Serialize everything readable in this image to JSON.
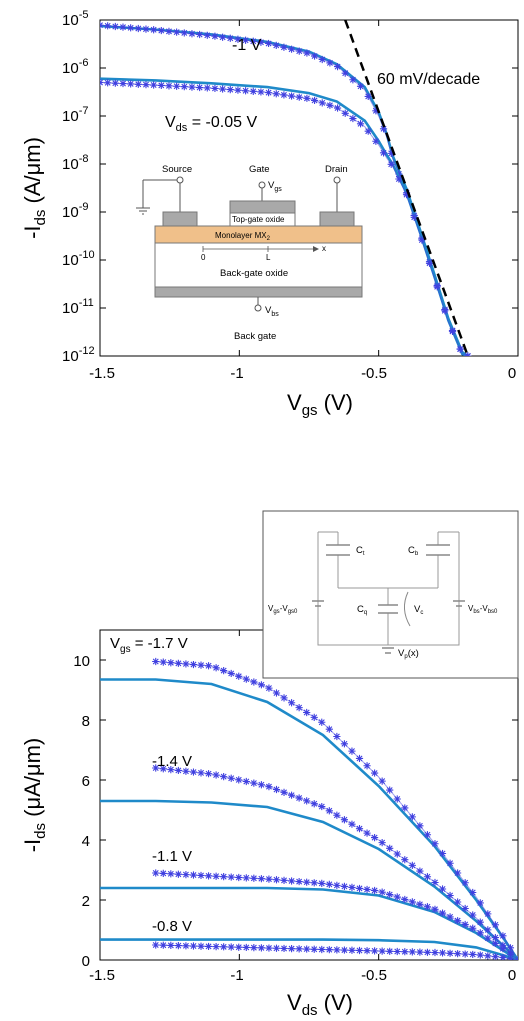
{
  "chart_data": [
    {
      "type": "line",
      "yscale": "log",
      "xlabel": {
        "main": "V",
        "sub": "gs",
        "unit": " (V)"
      },
      "ylabel": {
        "main": "-I",
        "sub": "ds",
        "unit": " (A/μm)"
      },
      "xlim": [
        -1.5,
        0
      ],
      "ylim": [
        1e-12,
        1e-05
      ],
      "xticks": [
        "-1.5",
        "-1",
        "-0.5",
        "0"
      ],
      "yticks": [
        {
          "base": "10",
          "exp": "-12"
        },
        {
          "base": "10",
          "exp": "-11"
        },
        {
          "base": "10",
          "exp": "-10"
        },
        {
          "base": "10",
          "exp": "-9"
        },
        {
          "base": "10",
          "exp": "-8"
        },
        {
          "base": "10",
          "exp": "-7"
        },
        {
          "base": "10",
          "exp": "-6"
        },
        {
          "base": "10",
          "exp": "-5"
        }
      ],
      "annotations": {
        "vds_high": "-1 V",
        "vds_low": {
          "main": "V",
          "sub": "ds",
          "rest": " = -0.05 V"
        },
        "slope": "60 mV/decade"
      },
      "series": [
        {
          "style": "model",
          "color": "#1f8ac9",
          "x": [
            -1.5,
            -1.3,
            -1.1,
            -0.9,
            -0.75,
            -0.65,
            -0.55,
            -0.5,
            -0.47,
            -0.45,
            -0.4,
            -0.35,
            -0.3,
            -0.25,
            -0.2,
            -0.18
          ],
          "y": [
            7.5e-06,
            6.3e-06,
            5e-06,
            3.5e-06,
            2.2e-06,
            1.2e-06,
            4e-07,
            1.2e-07,
            4e-08,
            1.5e-08,
            3e-09,
            4e-10,
            5e-11,
            6e-12,
            1.2e-12,
            1e-12
          ]
        },
        {
          "style": "measured",
          "color": "#4040e0",
          "x": [
            -1.5,
            -1.3,
            -1.1,
            -0.9,
            -0.75,
            -0.65,
            -0.55,
            -0.5,
            -0.47,
            -0.45,
            -0.4,
            -0.35,
            -0.3,
            -0.25,
            -0.2,
            -0.18
          ],
          "y": [
            7.8e-06,
            6.2e-06,
            4.7e-06,
            3.3e-06,
            2e-06,
            1.1e-06,
            3.5e-07,
            1e-07,
            3.5e-08,
            1.3e-08,
            2.5e-09,
            3.5e-10,
            4.5e-11,
            5.5e-12,
            1.1e-12,
            1e-12
          ]
        },
        {
          "style": "model",
          "color": "#1f8ac9",
          "x": [
            -1.5,
            -1.3,
            -1.1,
            -0.9,
            -0.75,
            -0.65,
            -0.55,
            -0.5,
            -0.47,
            -0.45,
            -0.4,
            -0.35,
            -0.3,
            -0.25,
            -0.2,
            -0.18
          ],
          "y": [
            6e-07,
            5.5e-07,
            4.8e-07,
            4e-07,
            3e-07,
            2e-07,
            8e-08,
            3e-08,
            1.5e-08,
            1e-08,
            2.5e-09,
            3.5e-10,
            4.5e-11,
            5.5e-12,
            1.1e-12,
            1e-12
          ]
        },
        {
          "style": "measured",
          "color": "#4040e0",
          "x": [
            -1.5,
            -1.3,
            -1.1,
            -0.9,
            -0.75,
            -0.65,
            -0.55,
            -0.5,
            -0.47,
            -0.45,
            -0.4,
            -0.35,
            -0.3,
            -0.25,
            -0.2,
            -0.18
          ],
          "y": [
            5e-07,
            4.4e-07,
            3.8e-07,
            3.1e-07,
            2.3e-07,
            1.5e-07,
            6e-08,
            2.5e-08,
            1.3e-08,
            9e-09,
            2.3e-09,
            3.2e-10,
            4.2e-11,
            5.2e-12,
            1.1e-12,
            1e-12
          ]
        }
      ],
      "reference_line": {
        "style": "dashed",
        "x": [
          -0.62,
          -0.18
        ],
        "y": [
          1e-05,
          1e-12
        ]
      },
      "inset": {
        "source": "Source",
        "gate": "Gate",
        "drain": "Drain",
        "vgs": {
          "main": "V",
          "sub": "gs"
        },
        "topgate_oxide": "Top-gate oxide",
        "monolayer": {
          "main": "Monolayer MX",
          "sub": "2"
        },
        "x_zero": "0",
        "x_L": "L",
        "x_axis": "x",
        "backgate_oxide": "Back-gate oxide",
        "vbs": {
          "main": "V",
          "sub": "bs"
        },
        "back_gate": "Back gate"
      }
    },
    {
      "type": "line",
      "xlabel": {
        "main": "V",
        "sub": "ds",
        "unit": " (V)"
      },
      "ylabel": {
        "main": "-I",
        "sub": "ds",
        "unit": " (μA/μm)"
      },
      "xlim": [
        -1.5,
        0
      ],
      "ylim": [
        0,
        11
      ],
      "xticks": [
        "-1.5",
        "-1",
        "-0.5",
        "0"
      ],
      "yticks": [
        "0",
        "2",
        "4",
        "6",
        "8",
        "10"
      ],
      "labels": {
        "vgs": {
          "main": "V",
          "sub": "gs",
          "rest": " = -1.7 V"
        },
        "l2": "-1.4 V",
        "l3": "-1.1 V",
        "l4": "-0.8 V"
      },
      "series": [
        {
          "style": "model",
          "color": "#1f8ac9",
          "x": [
            -1.5,
            -1.3,
            -1.1,
            -0.9,
            -0.7,
            -0.5,
            -0.3,
            -0.15,
            -0.05,
            0
          ],
          "y": [
            9.35,
            9.35,
            9.2,
            8.6,
            7.5,
            5.8,
            3.8,
            2.0,
            0.7,
            0
          ]
        },
        {
          "style": "measured",
          "color": "#4040e0",
          "x": [
            -1.3,
            -1.1,
            -0.9,
            -0.7,
            -0.5,
            -0.3,
            -0.15,
            -0.05,
            0
          ],
          "y": [
            9.95,
            9.8,
            9.1,
            7.9,
            6.1,
            3.9,
            2.1,
            0.75,
            0
          ]
        },
        {
          "style": "model",
          "color": "#1f8ac9",
          "x": [
            -1.5,
            -1.3,
            -1.1,
            -0.9,
            -0.7,
            -0.5,
            -0.3,
            -0.15,
            -0.05,
            0
          ],
          "y": [
            5.3,
            5.3,
            5.25,
            5.1,
            4.6,
            3.7,
            2.45,
            1.3,
            0.45,
            0
          ]
        },
        {
          "style": "measured",
          "color": "#4040e0",
          "x": [
            -1.3,
            -1.1,
            -0.9,
            -0.7,
            -0.5,
            -0.3,
            -0.15,
            -0.05,
            0
          ],
          "y": [
            6.4,
            6.2,
            5.8,
            5.1,
            4.0,
            2.6,
            1.4,
            0.45,
            0
          ]
        },
        {
          "style": "model",
          "color": "#1f8ac9",
          "x": [
            -1.5,
            -1.3,
            -1.1,
            -0.9,
            -0.7,
            -0.5,
            -0.3,
            -0.15,
            -0.05,
            0
          ],
          "y": [
            2.4,
            2.4,
            2.4,
            2.4,
            2.35,
            2.15,
            1.6,
            0.9,
            0.3,
            0
          ]
        },
        {
          "style": "measured",
          "color": "#4040e0",
          "x": [
            -1.3,
            -1.1,
            -0.9,
            -0.7,
            -0.5,
            -0.3,
            -0.15,
            -0.05,
            0
          ],
          "y": [
            2.9,
            2.8,
            2.7,
            2.55,
            2.3,
            1.7,
            1.0,
            0.35,
            0
          ]
        },
        {
          "style": "model",
          "color": "#1f8ac9",
          "x": [
            -1.5,
            -1.3,
            -1.1,
            -0.9,
            -0.7,
            -0.5,
            -0.3,
            -0.15,
            -0.05,
            0
          ],
          "y": [
            0.68,
            0.68,
            0.68,
            0.68,
            0.68,
            0.66,
            0.6,
            0.42,
            0.15,
            0
          ]
        },
        {
          "style": "measured",
          "color": "#4040e0",
          "x": [
            -1.3,
            -1.1,
            -0.9,
            -0.7,
            -0.5,
            -0.3,
            -0.15,
            -0.05,
            0
          ],
          "y": [
            0.5,
            0.45,
            0.4,
            0.35,
            0.3,
            0.25,
            0.18,
            0.08,
            0
          ]
        }
      ],
      "inset": {
        "ct": {
          "main": "C",
          "sub": "t"
        },
        "cb": {
          "main": "C",
          "sub": "b"
        },
        "cq": {
          "main": "C",
          "sub": "q"
        },
        "vc": {
          "main": "V",
          "sub": "c"
        },
        "vp": {
          "main": "V",
          "sub": "p",
          "rest": "(x)"
        },
        "vgs_src": {
          "a": "V",
          "as": "gs",
          "b": "-V",
          "bs": "gs0"
        },
        "vbs_src": {
          "a": "V",
          "as": "bs",
          "b": "-V",
          "bs": "bs0"
        }
      }
    }
  ]
}
